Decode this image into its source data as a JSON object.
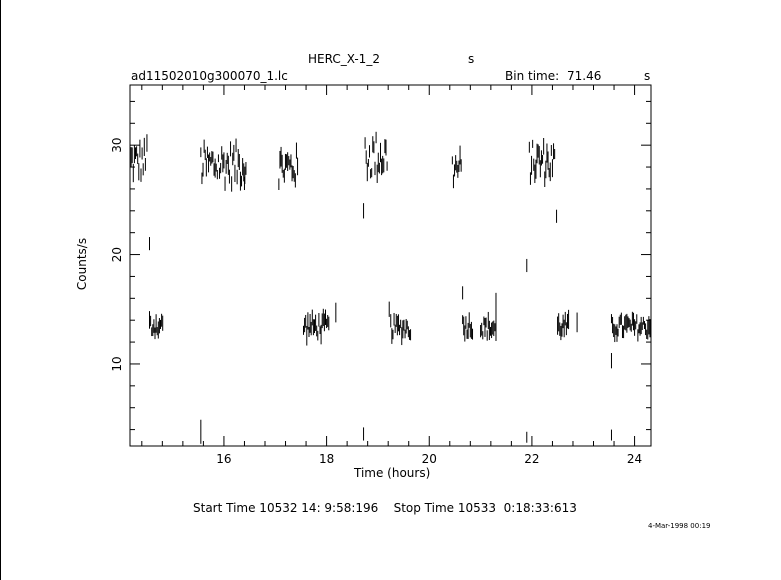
{
  "header": {
    "object": "HERC_X-1_2",
    "object_suffix": "s",
    "filename": "ad11502010g300070_1.lc",
    "bin_time_label": "Bin time:",
    "bin_time_value": "71.46",
    "bin_time_unit": "s"
  },
  "footer": {
    "time_range": "Start Time 10532 14: 9:58:196    Stop Time 10533  0:18:33:613",
    "stamp": "4-Mar-1998 00:19"
  },
  "chart_data": {
    "type": "scatter",
    "title": "HERC_X-1_2",
    "xlabel": "Time (hours)",
    "ylabel": "Counts/s",
    "xlim": [
      14.17,
      24.32
    ],
    "ylim": [
      2.5,
      35.5
    ],
    "x_ticks": [
      16,
      18,
      20,
      22,
      24
    ],
    "x_minor_step": 0.4,
    "y_ticks": [
      10,
      20,
      30
    ],
    "y_minor_step": 2,
    "grid": false,
    "legend": "none",
    "colors": {
      "data": "#000000",
      "axes": "#000000"
    },
    "high_state_segments": [
      {
        "x_start": 14.17,
        "x_end": 14.48,
        "mean": 28.5,
        "amp": 1.6
      },
      {
        "x_start": 15.55,
        "x_end": 16.45,
        "mean": 28.2,
        "amp": 1.8
      },
      {
        "x_start": 17.07,
        "x_end": 17.45,
        "mean": 28.0,
        "amp": 1.6
      },
      {
        "x_start": 18.75,
        "x_end": 19.2,
        "mean": 29.0,
        "amp": 2.0
      },
      {
        "x_start": 20.45,
        "x_end": 20.63,
        "mean": 27.8,
        "amp": 1.5
      },
      {
        "x_start": 21.95,
        "x_end": 22.45,
        "mean": 28.5,
        "amp": 1.7
      }
    ],
    "low_state_segments": [
      {
        "x_start": 14.55,
        "x_end": 14.82,
        "mean": 13.5,
        "amp": 0.8
      },
      {
        "x_start": 17.55,
        "x_end": 18.05,
        "mean": 13.4,
        "amp": 0.9
      },
      {
        "x_start": 19.25,
        "x_end": 19.65,
        "mean": 13.3,
        "amp": 0.8
      },
      {
        "x_start": 20.65,
        "x_end": 20.85,
        "mean": 13.5,
        "amp": 0.8
      },
      {
        "x_start": 21.0,
        "x_end": 21.3,
        "mean": 13.3,
        "amp": 0.8
      },
      {
        "x_start": 22.5,
        "x_end": 22.72,
        "mean": 13.4,
        "amp": 0.8
      },
      {
        "x_start": 23.55,
        "x_end": 24.32,
        "mean": 13.4,
        "amp": 0.8
      }
    ],
    "isolated_points": [
      {
        "x": 14.5,
        "y": 30.2,
        "err": 0.8
      },
      {
        "x": 14.55,
        "y": 21.0,
        "err": 0.6
      },
      {
        "x": 15.55,
        "y": 3.8,
        "err": 1.1
      },
      {
        "x": 16.4,
        "y": 26.5,
        "err": 0.6
      },
      {
        "x": 18.18,
        "y": 14.7,
        "err": 0.9
      },
      {
        "x": 18.72,
        "y": 24.0,
        "err": 0.7
      },
      {
        "x": 18.72,
        "y": 3.6,
        "err": 0.6
      },
      {
        "x": 19.22,
        "y": 15.0,
        "err": 0.7
      },
      {
        "x": 20.65,
        "y": 16.5,
        "err": 0.6
      },
      {
        "x": 21.3,
        "y": 14.3,
        "err": 2.2
      },
      {
        "x": 21.9,
        "y": 19.0,
        "err": 0.6
      },
      {
        "x": 21.9,
        "y": 3.3,
        "err": 0.5
      },
      {
        "x": 22.48,
        "y": 23.5,
        "err": 0.6
      },
      {
        "x": 22.88,
        "y": 13.8,
        "err": 0.9
      },
      {
        "x": 23.55,
        "y": 10.3,
        "err": 0.7
      },
      {
        "x": 23.55,
        "y": 3.5,
        "err": 0.5
      }
    ]
  }
}
